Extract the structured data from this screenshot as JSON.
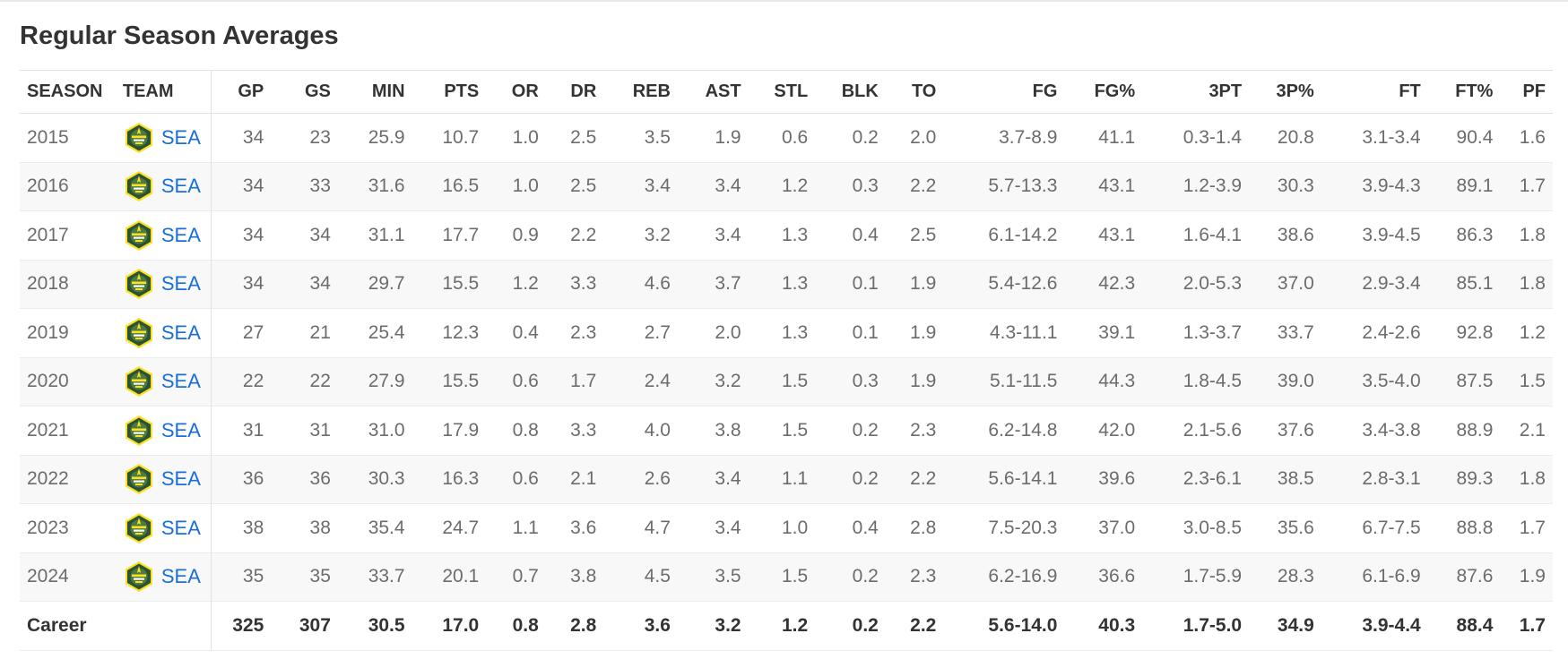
{
  "section": {
    "title": "Regular Season Averages"
  },
  "table": {
    "headers": [
      "SEASON",
      "TEAM",
      "GP",
      "GS",
      "MIN",
      "PTS",
      "OR",
      "DR",
      "REB",
      "AST",
      "STL",
      "BLK",
      "TO",
      "FG",
      "FG%",
      "3PT",
      "3P%",
      "FT",
      "FT%",
      "PF"
    ],
    "team_logo_icon": "seattle-storm-logo-icon",
    "team_logo_colors": {
      "green": "#2c5234",
      "gold": "#fbe122"
    },
    "link_color": "#1a6ed8",
    "rows": [
      [
        "2015",
        "SEA",
        "34",
        "23",
        "25.9",
        "10.7",
        "1.0",
        "2.5",
        "3.5",
        "1.9",
        "0.6",
        "0.2",
        "2.0",
        "3.7-8.9",
        "41.1",
        "0.3-1.4",
        "20.8",
        "3.1-3.4",
        "90.4",
        "1.6"
      ],
      [
        "2016",
        "SEA",
        "34",
        "33",
        "31.6",
        "16.5",
        "1.0",
        "2.5",
        "3.4",
        "3.4",
        "1.2",
        "0.3",
        "2.2",
        "5.7-13.3",
        "43.1",
        "1.2-3.9",
        "30.3",
        "3.9-4.3",
        "89.1",
        "1.7"
      ],
      [
        "2017",
        "SEA",
        "34",
        "34",
        "31.1",
        "17.7",
        "0.9",
        "2.2",
        "3.2",
        "3.4",
        "1.3",
        "0.4",
        "2.5",
        "6.1-14.2",
        "43.1",
        "1.6-4.1",
        "38.6",
        "3.9-4.5",
        "86.3",
        "1.8"
      ],
      [
        "2018",
        "SEA",
        "34",
        "34",
        "29.7",
        "15.5",
        "1.2",
        "3.3",
        "4.6",
        "3.7",
        "1.3",
        "0.1",
        "1.9",
        "5.4-12.6",
        "42.3",
        "2.0-5.3",
        "37.0",
        "2.9-3.4",
        "85.1",
        "1.8"
      ],
      [
        "2019",
        "SEA",
        "27",
        "21",
        "25.4",
        "12.3",
        "0.4",
        "2.3",
        "2.7",
        "2.0",
        "1.3",
        "0.1",
        "1.9",
        "4.3-11.1",
        "39.1",
        "1.3-3.7",
        "33.7",
        "2.4-2.6",
        "92.8",
        "1.2"
      ],
      [
        "2020",
        "SEA",
        "22",
        "22",
        "27.9",
        "15.5",
        "0.6",
        "1.7",
        "2.4",
        "3.2",
        "1.5",
        "0.3",
        "1.9",
        "5.1-11.5",
        "44.3",
        "1.8-4.5",
        "39.0",
        "3.5-4.0",
        "87.5",
        "1.5"
      ],
      [
        "2021",
        "SEA",
        "31",
        "31",
        "31.0",
        "17.9",
        "0.8",
        "3.3",
        "4.0",
        "3.8",
        "1.5",
        "0.2",
        "2.3",
        "6.2-14.8",
        "42.0",
        "2.1-5.6",
        "37.6",
        "3.4-3.8",
        "88.9",
        "2.1"
      ],
      [
        "2022",
        "SEA",
        "36",
        "36",
        "30.3",
        "16.3",
        "0.6",
        "2.1",
        "2.6",
        "3.4",
        "1.1",
        "0.2",
        "2.2",
        "5.6-14.1",
        "39.6",
        "2.3-6.1",
        "38.5",
        "2.8-3.1",
        "89.3",
        "1.8"
      ],
      [
        "2023",
        "SEA",
        "38",
        "38",
        "35.4",
        "24.7",
        "1.1",
        "3.6",
        "4.7",
        "3.4",
        "1.0",
        "0.4",
        "2.8",
        "7.5-20.3",
        "37.0",
        "3.0-8.5",
        "35.6",
        "6.7-7.5",
        "88.8",
        "1.7"
      ],
      [
        "2024",
        "SEA",
        "35",
        "35",
        "33.7",
        "20.1",
        "0.7",
        "3.8",
        "4.5",
        "3.5",
        "1.5",
        "0.2",
        "2.3",
        "6.2-16.9",
        "36.6",
        "1.7-5.9",
        "28.3",
        "6.1-6.9",
        "87.6",
        "1.9"
      ]
    ],
    "career": [
      "Career",
      "325",
      "307",
      "30.5",
      "17.0",
      "0.8",
      "2.8",
      "3.6",
      "3.2",
      "1.2",
      "0.2",
      "2.2",
      "5.6-14.0",
      "40.3",
      "1.7-5.0",
      "34.9",
      "3.9-4.4",
      "88.4",
      "1.7"
    ]
  }
}
